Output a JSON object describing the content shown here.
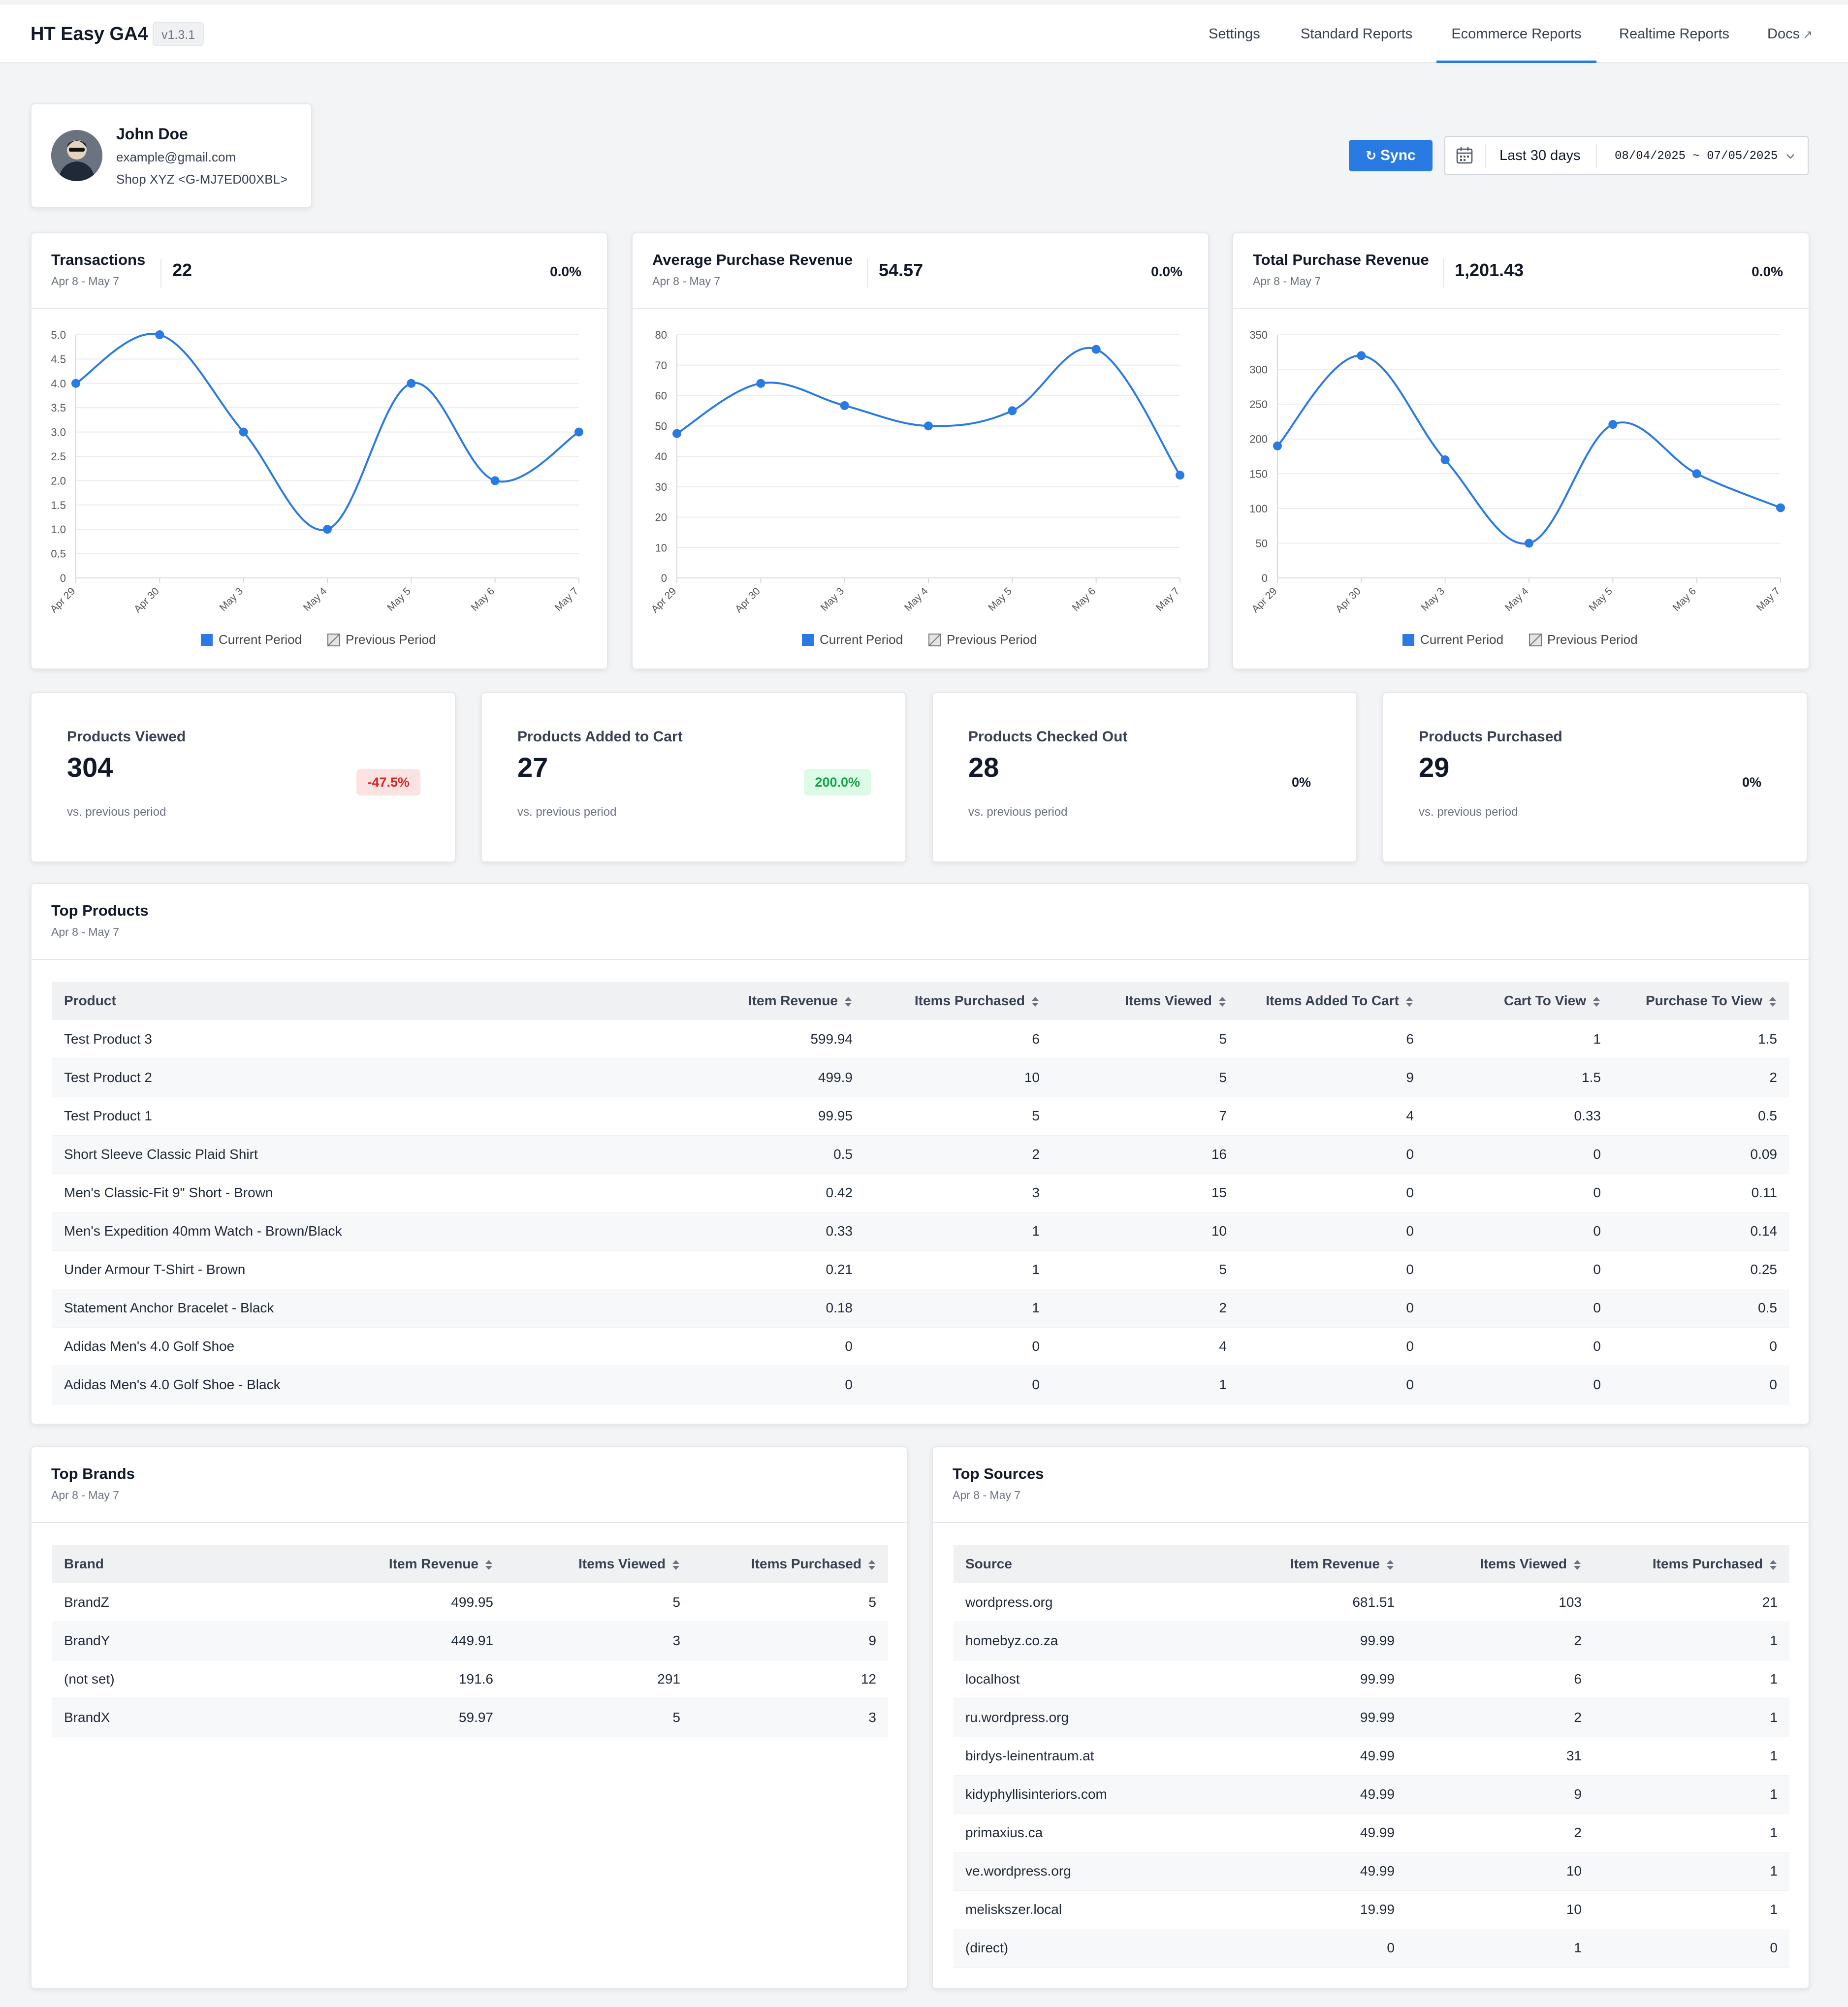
{
  "header": {
    "brand": "HT Easy GA4",
    "version": "v1.3.1",
    "nav": [
      "Settings",
      "Standard Reports",
      "Ecommerce Reports",
      "Realtime Reports",
      "Docs"
    ]
  },
  "profile": {
    "name": "John Doe",
    "email": "example@gmail.com",
    "shop": "Shop XYZ <G-MJ7ED00XBL>"
  },
  "controls": {
    "sync_label": "Sync",
    "range_label": "Last 30 days",
    "range_dates": "08/04/2025 ~ 07/05/2025"
  },
  "colors": {
    "accent": "#2a7ae4",
    "previous": "#777777"
  },
  "charts": [
    {
      "title": "Transactions",
      "subtitle": "Apr 8 - May 7",
      "value": "22",
      "change": "0.0%",
      "legend": [
        "Current Period",
        "Previous Period"
      ]
    },
    {
      "title": "Average Purchase Revenue",
      "subtitle": "Apr 8 - May 7",
      "value": "54.57",
      "change": "0.0%",
      "legend": [
        "Current Period",
        "Previous Period"
      ]
    },
    {
      "title": "Total Purchase Revenue",
      "subtitle": "Apr 8 - May 7",
      "value": "1,201.43",
      "change": "0.0%",
      "legend": [
        "Current Period",
        "Previous Period"
      ]
    }
  ],
  "chart_data": [
    {
      "type": "line",
      "title": "Transactions",
      "categories": [
        "Apr 29",
        "Apr 30",
        "May 3",
        "May 4",
        "May 5",
        "May 6",
        "May 7"
      ],
      "series": [
        {
          "name": "Current Period",
          "values": [
            4,
            5,
            3,
            1,
            4,
            2,
            3
          ]
        }
      ],
      "ylim": [
        0,
        5
      ],
      "yticks": [
        "0",
        "0.5",
        "1.0",
        "1.5",
        "2.0",
        "2.5",
        "3.0",
        "3.5",
        "4.0",
        "4.5",
        "5.0"
      ]
    },
    {
      "type": "line",
      "title": "Average Purchase Revenue",
      "categories": [
        "Apr 29",
        "Apr 30",
        "May 3",
        "May 4",
        "May 5",
        "May 6",
        "May 7"
      ],
      "series": [
        {
          "name": "Current Period",
          "values": [
            47.5,
            64,
            56.7,
            50,
            55,
            75.2,
            33.8
          ]
        }
      ],
      "ylim": [
        0,
        80
      ],
      "yticks": [
        "0",
        "10",
        "20",
        "30",
        "40",
        "50",
        "60",
        "70",
        "80"
      ]
    },
    {
      "type": "line",
      "title": "Total Purchase Revenue",
      "categories": [
        "Apr 29",
        "Apr 30",
        "May 3",
        "May 4",
        "May 5",
        "May 6",
        "May 7"
      ],
      "series": [
        {
          "name": "Current Period",
          "values": [
            190,
            320,
            170,
            49.98,
            221,
            150,
            101
          ]
        }
      ],
      "ylim": [
        0,
        350
      ],
      "yticks": [
        "0",
        "50",
        "100",
        "150",
        "200",
        "250",
        "300",
        "350"
      ]
    }
  ],
  "stats": [
    {
      "title": "Products Viewed",
      "value": "304",
      "change": "-47.5%",
      "footer": "vs. previous period"
    },
    {
      "title": "Products Added to Cart",
      "value": "27",
      "change": "200.0%",
      "footer": "vs. previous period"
    },
    {
      "title": "Products Checked Out",
      "value": "28",
      "change": "0%",
      "footer": "vs. previous period"
    },
    {
      "title": "Products Purchased",
      "value": "29",
      "change": "0%",
      "footer": "vs. previous period"
    }
  ],
  "top_products": {
    "title": "Top Products",
    "subtitle": "Apr 8 - May 7",
    "columns": [
      "Product",
      "Item Revenue",
      "Items Purchased",
      "Items Viewed",
      "Items Added To Cart",
      "Cart To View",
      "Purchase To View"
    ],
    "rows": [
      [
        "Test Product 3",
        "599.94",
        "6",
        "5",
        "6",
        "1",
        "1.5"
      ],
      [
        "Test Product 2",
        "499.9",
        "10",
        "5",
        "9",
        "1.5",
        "2"
      ],
      [
        "Test Product 1",
        "99.95",
        "5",
        "7",
        "4",
        "0.33",
        "0.5"
      ],
      [
        "Short Sleeve Classic Plaid Shirt",
        "0.5",
        "2",
        "16",
        "0",
        "0",
        "0.09"
      ],
      [
        "Men's Classic-Fit 9\" Short - Brown",
        "0.42",
        "3",
        "15",
        "0",
        "0",
        "0.11"
      ],
      [
        "Men's Expedition 40mm Watch - Brown/Black",
        "0.33",
        "1",
        "10",
        "0",
        "0",
        "0.14"
      ],
      [
        "Under Armour T-Shirt - Brown",
        "0.21",
        "1",
        "5",
        "0",
        "0",
        "0.25"
      ],
      [
        "Statement Anchor Bracelet - Black",
        "0.18",
        "1",
        "2",
        "0",
        "0",
        "0.5"
      ],
      [
        "Adidas Men's 4.0 Golf Shoe",
        "0",
        "0",
        "4",
        "0",
        "0",
        "0"
      ],
      [
        "Adidas Men's 4.0 Golf Shoe - Black",
        "0",
        "0",
        "1",
        "0",
        "0",
        "0"
      ]
    ]
  },
  "top_brands": {
    "title": "Top Brands",
    "subtitle": "Apr 8 - May 7",
    "columns": [
      "Brand",
      "Item Revenue",
      "Items Viewed",
      "Items Purchased"
    ],
    "rows": [
      [
        "BrandZ",
        "499.95",
        "5",
        "5"
      ],
      [
        "BrandY",
        "449.91",
        "3",
        "9"
      ],
      [
        "(not set)",
        "191.6",
        "291",
        "12"
      ],
      [
        "BrandX",
        "59.97",
        "5",
        "3"
      ]
    ]
  },
  "top_sources": {
    "title": "Top Sources",
    "subtitle": "Apr 8 - May 7",
    "columns": [
      "Source",
      "Item Revenue",
      "Items Viewed",
      "Items Purchased"
    ],
    "rows": [
      [
        "wordpress.org",
        "681.51",
        "103",
        "21"
      ],
      [
        "homebyz.co.za",
        "99.99",
        "2",
        "1"
      ],
      [
        "localhost",
        "99.99",
        "6",
        "1"
      ],
      [
        "ru.wordpress.org",
        "99.99",
        "2",
        "1"
      ],
      [
        "birdys-leinentraum.at",
        "49.99",
        "31",
        "1"
      ],
      [
        "kidyphyllisinteriors.com",
        "49.99",
        "9",
        "1"
      ],
      [
        "primaxius.ca",
        "49.99",
        "2",
        "1"
      ],
      [
        "ve.wordpress.org",
        "49.99",
        "10",
        "1"
      ],
      [
        "meliskszer.local",
        "19.99",
        "10",
        "1"
      ],
      [
        "(direct)",
        "0",
        "1",
        "0"
      ]
    ]
  }
}
